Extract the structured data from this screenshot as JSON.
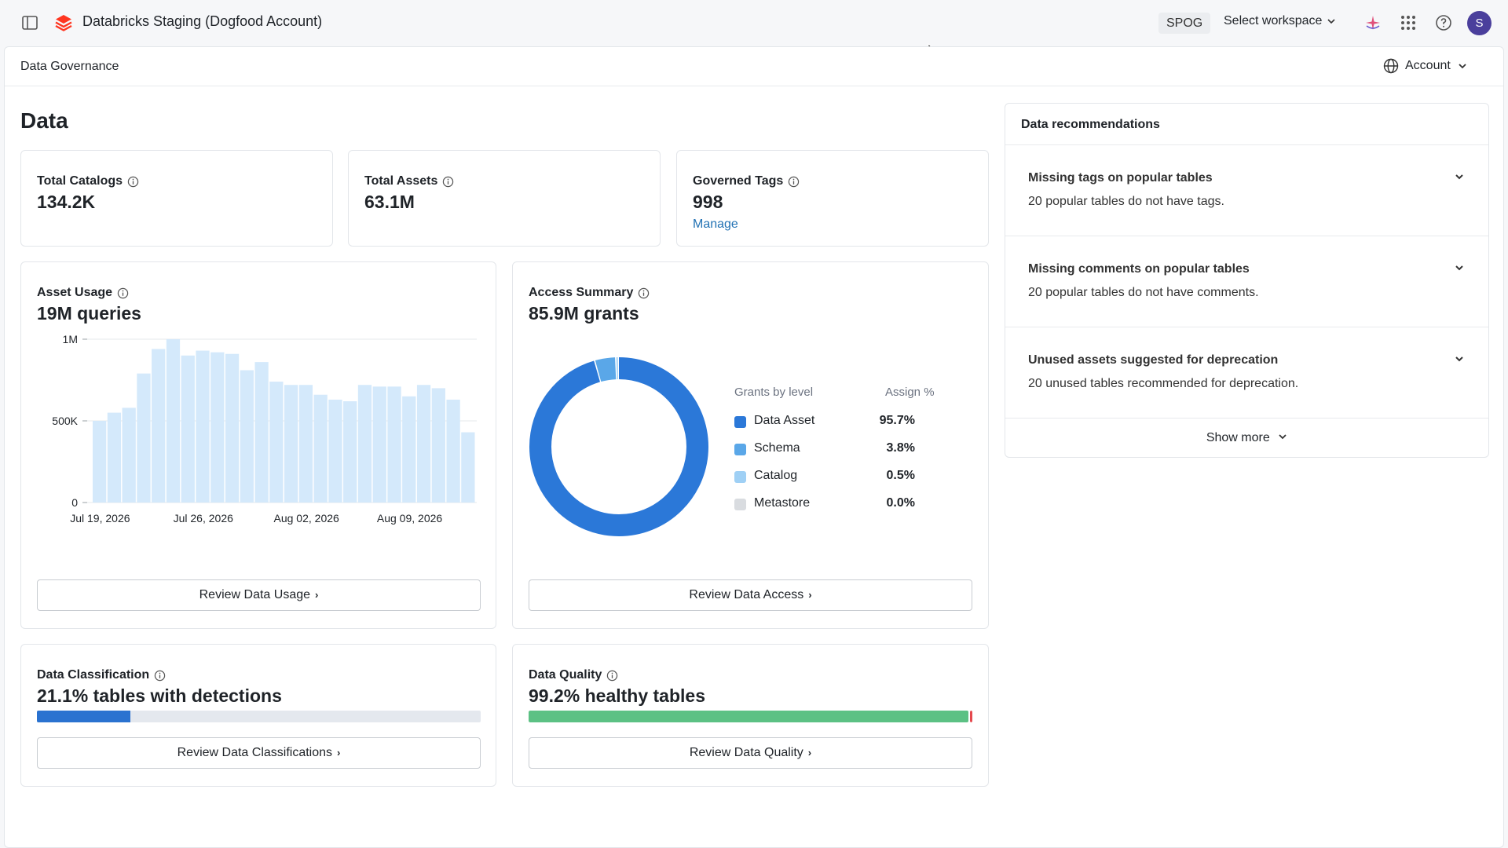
{
  "topbar": {
    "title": "Databricks Staging (Dogfood Account)",
    "spog": "SPOG",
    "workspace_select": "Select workspace",
    "avatar_initial": "S"
  },
  "subheader": {
    "breadcrumb": "Data Governance",
    "account": "Account"
  },
  "page": {
    "title": "Data"
  },
  "stats": {
    "catalogs": {
      "label": "Total Catalogs",
      "value": "134.2K"
    },
    "assets": {
      "label": "Total Assets",
      "value": "63.1M"
    },
    "tags": {
      "label": "Governed Tags",
      "value": "998",
      "link": "Manage"
    }
  },
  "asset_usage": {
    "label": "Asset Usage",
    "value": "19M queries",
    "button": "Review Data Usage"
  },
  "access_summary": {
    "label": "Access Summary",
    "value": "85.9M grants",
    "legend_header": "Grants by level",
    "pct_header": "Assign %",
    "button": "Review Data Access"
  },
  "classification": {
    "label": "Data Classification",
    "value": "21.1% tables with detections",
    "progress": 0.211,
    "button": "Review Data Classifications"
  },
  "quality": {
    "label": "Data Quality",
    "value": "99.2% healthy tables",
    "progress": 0.992,
    "button": "Review Data Quality"
  },
  "recommendations": {
    "title": "Data recommendations",
    "items": [
      {
        "title": "Missing tags on popular tables",
        "desc": "20 popular tables do not have tags."
      },
      {
        "title": "Missing comments on popular tables",
        "desc": "20 popular tables do not have comments."
      },
      {
        "title": "Unused assets suggested for deprecation",
        "desc": "20 unused tables recommended for deprecation."
      }
    ],
    "show_more": "Show more"
  },
  "colors": {
    "bar": "#d4e9fb",
    "donut_data_asset": "#2b78d8",
    "donut_schema": "#5aa7e8",
    "donut_catalog": "#9fd0f5",
    "donut_metastore": "#d9dce0",
    "classification_fill": "#2a72d0",
    "quality_fill": "#5cc184",
    "quality_bad": "#e5484d"
  },
  "chart_data": [
    {
      "type": "bar",
      "title": "",
      "x_tick_labels": [
        "Jul 19, 2026",
        "Jul 26, 2026",
        "Aug 02, 2026",
        "Aug 09, 2026"
      ],
      "y_tick_labels": [
        "0",
        "500K",
        "1M"
      ],
      "ylim": [
        0,
        1000000
      ],
      "grid": true,
      "categories": [
        "Jul 19",
        "Jul 20",
        "Jul 21",
        "Jul 22",
        "Jul 23",
        "Jul 24",
        "Jul 25",
        "Jul 26",
        "Jul 27",
        "Jul 28",
        "Jul 29",
        "Jul 30",
        "Jul 31",
        "Aug 01",
        "Aug 02",
        "Aug 03",
        "Aug 04",
        "Aug 05",
        "Aug 06",
        "Aug 07",
        "Aug 08",
        "Aug 09",
        "Aug 10",
        "Aug 11",
        "Aug 12",
        "Aug 13"
      ],
      "values": [
        500000,
        550000,
        580000,
        790000,
        940000,
        1000000,
        900000,
        930000,
        920000,
        910000,
        810000,
        860000,
        740000,
        720000,
        720000,
        660000,
        630000,
        620000,
        720000,
        710000,
        710000,
        650000,
        720000,
        700000,
        630000,
        430000
      ]
    },
    {
      "type": "pie",
      "title": "",
      "legend_placement": "right",
      "categories": [
        "Data Asset",
        "Schema",
        "Catalog",
        "Metastore"
      ],
      "values": [
        95.7,
        3.8,
        0.5,
        0.0
      ],
      "labels": [
        "95.7%",
        "3.8%",
        "0.5%",
        "0.0%"
      ]
    }
  ]
}
